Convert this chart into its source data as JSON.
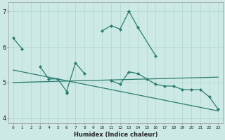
{
  "line1_x": [
    0,
    1,
    10,
    11,
    12,
    13,
    14,
    16
  ],
  "line1_y": [
    6.25,
    5.95,
    6.45,
    6.6,
    6.5,
    7.0,
    6.55,
    5.75
  ],
  "line2_x": [
    3,
    4,
    5,
    6,
    7,
    8
  ],
  "line2_y": [
    5.45,
    5.1,
    5.1,
    4.75,
    5.55,
    5.25
  ],
  "line3_x": [
    6,
    11,
    12,
    13,
    14,
    15,
    16,
    17,
    18,
    19,
    20,
    21,
    22,
    23
  ],
  "line3_y": [
    4.7,
    5.05,
    4.95,
    5.3,
    5.25,
    5.1,
    4.95,
    4.9,
    4.9,
    4.8,
    4.8,
    4.8,
    4.6,
    4.25
  ],
  "trend1_x": [
    0,
    23
  ],
  "trend1_y": [
    5.0,
    5.15
  ],
  "trend2_x": [
    0,
    23
  ],
  "trend2_y": [
    5.35,
    4.2
  ],
  "line_color": "#2a7d6e",
  "bg_color": "#cce9e5",
  "grid_color": "#b0d4d0",
  "xlim": [
    -0.5,
    23.5
  ],
  "ylim": [
    3.85,
    7.25
  ],
  "xlabel": "Humidex (Indice chaleur)",
  "yticks": [
    4,
    5,
    6,
    7
  ],
  "xticks": [
    0,
    1,
    2,
    3,
    4,
    5,
    6,
    7,
    8,
    9,
    10,
    11,
    12,
    13,
    14,
    15,
    16,
    17,
    18,
    19,
    20,
    21,
    22,
    23
  ]
}
